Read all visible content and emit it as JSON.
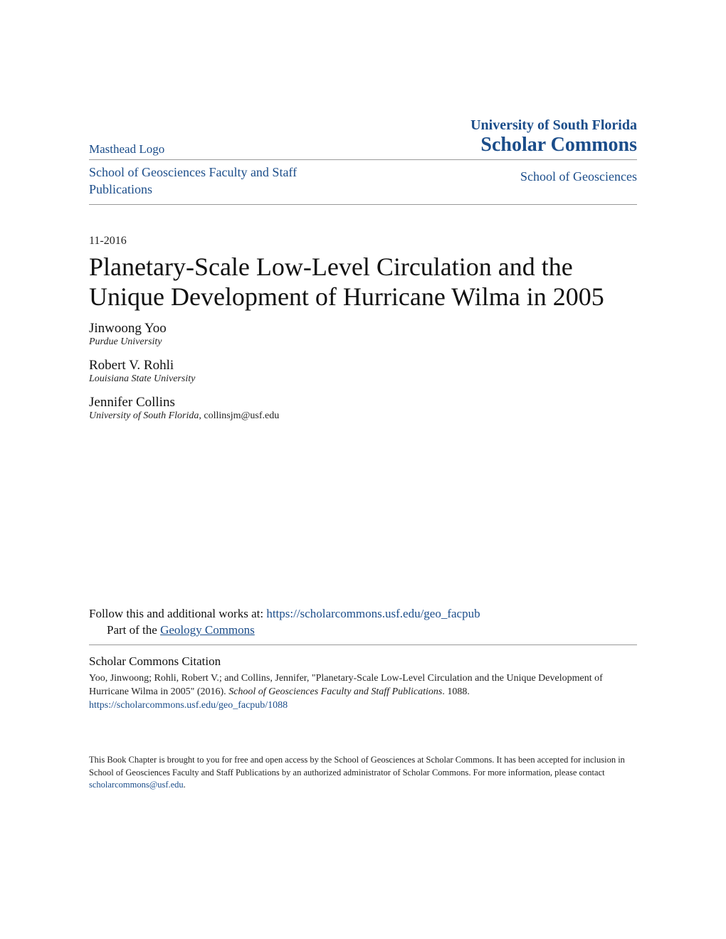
{
  "header": {
    "masthead_logo": "Masthead Logo",
    "university": "University of South Florida",
    "repository": "Scholar Commons"
  },
  "breadcrumb": {
    "left": "School of Geosciences Faculty and Staff Publications",
    "right": "School of Geosciences"
  },
  "date": "11-2016",
  "title": "Planetary-Scale Low-Level Circulation and the Unique Development of Hurricane Wilma in 2005",
  "authors": [
    {
      "name": "Jinwoong Yoo",
      "affiliation": "Purdue University",
      "email": ""
    },
    {
      "name": "Robert V. Rohli",
      "affiliation": "Louisiana State University",
      "email": ""
    },
    {
      "name": "Jennifer Collins",
      "affiliation": "University of South Florida",
      "email": ", collinsjm@usf.edu"
    }
  ],
  "follow": {
    "prefix": "Follow this and additional works at: ",
    "url": "https://scholarcommons.usf.edu/geo_facpub",
    "part_of_prefix": "Part of the ",
    "part_of_link": "Geology Commons"
  },
  "citation": {
    "heading": "Scholar Commons Citation",
    "text_part1": "Yoo, Jinwoong; Rohli, Robert V.; and Collins, Jennifer, \"Planetary-Scale Low-Level Circulation and the Unique Development of Hurricane Wilma in 2005\" (2016). ",
    "text_italic": "School of Geosciences Faculty and Staff Publications",
    "text_part2": ". 1088.",
    "link": "https://scholarcommons.usf.edu/geo_facpub/1088"
  },
  "footer": {
    "text": "This Book Chapter is brought to you for free and open access by the School of Geosciences at Scholar Commons. It has been accepted for inclusion in School of Geosciences Faculty and Staff Publications by an authorized administrator of Scholar Commons. For more information, please contact ",
    "email": "scholarcommons@usf.edu",
    "period": "."
  },
  "colors": {
    "link_color": "#1b4d8a",
    "text_color": "#111111",
    "border_color": "#999999",
    "background": "#ffffff"
  }
}
